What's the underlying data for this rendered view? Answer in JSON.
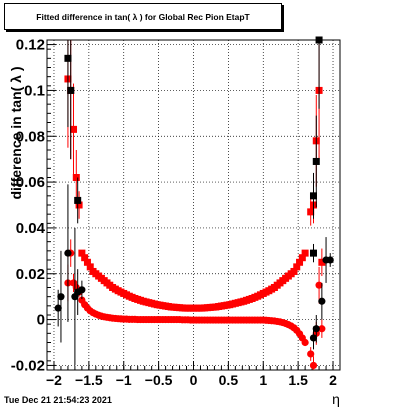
{
  "title": "Fitted difference in tan( λ ) for Global Rec Pion EtapT",
  "timestamp": "Tue Dec 21 21:54:23 2021",
  "chart_data": {
    "type": "scatter",
    "xlabel": "η",
    "ylabel": "difference in tan( λ )",
    "xlim": [
      -2.1,
      2.1
    ],
    "ylim": [
      -0.022,
      0.122
    ],
    "xticks": [
      -2,
      -1.5,
      -1,
      -0.5,
      0,
      0.5,
      1,
      1.5,
      2
    ],
    "xtick_labels": [
      "−2",
      "−1.5",
      "−1",
      "−0.5",
      "0",
      "0.5",
      "1",
      "1.5",
      "2"
    ],
    "yticks": [
      -0.02,
      0,
      0.02,
      0.04,
      0.06,
      0.08,
      0.1,
      0.12
    ],
    "ytick_labels": [
      "-0.02",
      "0",
      "0.02",
      "0.04",
      "0.06",
      "0.08",
      "0.1",
      "0.12"
    ],
    "grid": true,
    "series": [
      {
        "color": "#ff0000",
        "marker": "square",
        "points": [
          [
            -1.8,
            0.105
          ],
          [
            -1.76,
            0.1
          ],
          [
            -1.72,
            0.083
          ],
          [
            -1.68,
            0.062
          ],
          [
            -1.64,
            0.05
          ],
          [
            -1.6,
            0.029
          ],
          [
            -1.56,
            0.027
          ],
          [
            -1.52,
            0.025
          ],
          [
            -1.48,
            0.023
          ],
          [
            -1.44,
            0.021
          ],
          [
            -1.4,
            0.02
          ],
          [
            -1.36,
            0.019
          ],
          [
            -1.32,
            0.018
          ],
          [
            -1.28,
            0.017
          ],
          [
            -1.24,
            0.016
          ],
          [
            -1.2,
            0.015
          ],
          [
            -1.16,
            0.014
          ],
          [
            -1.12,
            0.0133
          ],
          [
            -1.08,
            0.0126
          ],
          [
            -1.04,
            0.012
          ],
          [
            -1.0,
            0.0114
          ],
          [
            -0.96,
            0.0108
          ],
          [
            -0.92,
            0.0102
          ],
          [
            -0.88,
            0.0097
          ],
          [
            -0.84,
            0.0092
          ],
          [
            -0.8,
            0.0088
          ],
          [
            -0.76,
            0.0084
          ],
          [
            -0.72,
            0.008
          ],
          [
            -0.68,
            0.0077
          ],
          [
            -0.64,
            0.0074
          ],
          [
            -0.6,
            0.0071
          ],
          [
            -0.56,
            0.0068
          ],
          [
            -0.52,
            0.0065
          ],
          [
            -0.48,
            0.0063
          ],
          [
            -0.44,
            0.0061
          ],
          [
            -0.4,
            0.0059
          ],
          [
            -0.36,
            0.0057
          ],
          [
            -0.32,
            0.0055
          ],
          [
            -0.28,
            0.0054
          ],
          [
            -0.24,
            0.0053
          ],
          [
            -0.2,
            0.0052
          ],
          [
            -0.16,
            0.0051
          ],
          [
            -0.12,
            0.005
          ],
          [
            -0.08,
            0.005
          ],
          [
            -0.04,
            0.005
          ],
          [
            0.0,
            0.005
          ],
          [
            0.04,
            0.005
          ],
          [
            0.08,
            0.005
          ],
          [
            0.12,
            0.005
          ],
          [
            0.16,
            0.0051
          ],
          [
            0.2,
            0.0052
          ],
          [
            0.24,
            0.0053
          ],
          [
            0.28,
            0.0054
          ],
          [
            0.32,
            0.0055
          ],
          [
            0.36,
            0.0057
          ],
          [
            0.4,
            0.0059
          ],
          [
            0.44,
            0.0061
          ],
          [
            0.48,
            0.0063
          ],
          [
            0.52,
            0.0065
          ],
          [
            0.56,
            0.0068
          ],
          [
            0.6,
            0.0071
          ],
          [
            0.64,
            0.0074
          ],
          [
            0.68,
            0.0077
          ],
          [
            0.72,
            0.008
          ],
          [
            0.76,
            0.0084
          ],
          [
            0.8,
            0.0088
          ],
          [
            0.84,
            0.0092
          ],
          [
            0.88,
            0.0097
          ],
          [
            0.92,
            0.0102
          ],
          [
            0.96,
            0.0108
          ],
          [
            1.0,
            0.0114
          ],
          [
            1.04,
            0.012
          ],
          [
            1.08,
            0.0126
          ],
          [
            1.12,
            0.0133
          ],
          [
            1.16,
            0.014
          ],
          [
            1.2,
            0.015
          ],
          [
            1.24,
            0.016
          ],
          [
            1.28,
            0.017
          ],
          [
            1.32,
            0.018
          ],
          [
            1.36,
            0.019
          ],
          [
            1.4,
            0.02
          ],
          [
            1.44,
            0.021
          ],
          [
            1.48,
            0.023
          ],
          [
            1.52,
            0.025
          ],
          [
            1.56,
            0.027
          ],
          [
            1.6,
            0.029
          ],
          [
            1.68,
            0.047
          ],
          [
            1.72,
            0.05
          ],
          [
            1.76,
            0.078
          ],
          [
            1.8,
            0.1
          ],
          [
            1.84,
            0.025
          ]
        ],
        "errors": [
          0.03,
          0.03,
          0.02,
          0.012,
          0.006,
          0,
          0,
          0,
          0,
          0,
          0,
          0,
          0,
          0,
          0,
          0,
          0,
          0,
          0,
          0,
          0,
          0,
          0,
          0,
          0,
          0,
          0,
          0,
          0,
          0,
          0,
          0,
          0,
          0,
          0,
          0,
          0,
          0,
          0,
          0,
          0,
          0,
          0,
          0,
          0,
          0,
          0,
          0,
          0,
          0,
          0,
          0,
          0,
          0,
          0,
          0,
          0,
          0,
          0,
          0,
          0,
          0,
          0,
          0,
          0,
          0,
          0,
          0,
          0,
          0,
          0,
          0,
          0,
          0,
          0,
          0,
          0,
          0,
          0,
          0,
          0,
          0,
          0,
          0,
          0,
          0,
          0.006,
          0.008,
          0.02,
          0.03,
          0.006
        ]
      },
      {
        "color": "#ff0000",
        "marker": "circle",
        "points": [
          [
            -1.8,
            0.016
          ],
          [
            -1.76,
            0.029
          ],
          [
            -1.72,
            0.016
          ],
          [
            -1.68,
            0.014
          ],
          [
            -1.64,
            0.012
          ],
          [
            -1.6,
            0.0085
          ],
          [
            -1.56,
            0.0065
          ],
          [
            -1.52,
            0.005
          ],
          [
            -1.48,
            0.0038
          ],
          [
            -1.44,
            0.003
          ],
          [
            -1.4,
            0.0024
          ],
          [
            -1.36,
            0.0019
          ],
          [
            -1.32,
            0.0015
          ],
          [
            -1.28,
            0.0012
          ],
          [
            -1.24,
            0.001
          ],
          [
            -1.2,
            0.0008
          ],
          [
            -1.16,
            0.0006
          ],
          [
            -1.12,
            0.0005
          ],
          [
            -1.08,
            0.0004
          ],
          [
            -1.04,
            0.0003
          ],
          [
            -1.0,
            0.0002
          ],
          [
            -0.96,
            0.0002
          ],
          [
            -0.92,
            0.0001
          ],
          [
            -0.88,
            0.0001
          ],
          [
            -0.84,
            0.0001
          ],
          [
            -0.8,
            0.0
          ],
          [
            -0.76,
            0.0
          ],
          [
            -0.72,
            0.0
          ],
          [
            -0.68,
            0.0
          ],
          [
            -0.64,
            0.0
          ],
          [
            -0.6,
            0.0
          ],
          [
            -0.56,
            0.0
          ],
          [
            -0.52,
            0.0
          ],
          [
            -0.48,
            0.0
          ],
          [
            -0.44,
            0.0
          ],
          [
            -0.4,
            0.0
          ],
          [
            -0.36,
            0.0
          ],
          [
            -0.32,
            0.0
          ],
          [
            -0.28,
            0.0
          ],
          [
            -0.24,
            0.0
          ],
          [
            -0.2,
            0.0
          ],
          [
            -0.16,
            -0.0001
          ],
          [
            -0.12,
            -0.0001
          ],
          [
            -0.08,
            -0.0001
          ],
          [
            -0.04,
            -0.0002
          ],
          [
            0.0,
            -0.0002
          ],
          [
            0.04,
            -0.0002
          ],
          [
            0.08,
            -0.0002
          ],
          [
            0.12,
            -0.0002
          ],
          [
            0.16,
            -0.0002
          ],
          [
            0.2,
            -0.0002
          ],
          [
            0.24,
            -0.0002
          ],
          [
            0.28,
            -0.0002
          ],
          [
            0.32,
            -0.0002
          ],
          [
            0.36,
            -0.0002
          ],
          [
            0.4,
            -0.0002
          ],
          [
            0.44,
            -0.0002
          ],
          [
            0.48,
            -0.0002
          ],
          [
            0.52,
            -0.0002
          ],
          [
            0.56,
            -0.0002
          ],
          [
            0.6,
            -0.0002
          ],
          [
            0.64,
            -0.0002
          ],
          [
            0.68,
            -0.0002
          ],
          [
            0.72,
            -0.0002
          ],
          [
            0.76,
            -0.0002
          ],
          [
            0.8,
            -0.0002
          ],
          [
            0.84,
            -0.0002
          ],
          [
            0.88,
            -0.0002
          ],
          [
            0.92,
            -0.0002
          ],
          [
            0.96,
            -0.0002
          ],
          [
            1.0,
            -0.0002
          ],
          [
            1.04,
            -0.0003
          ],
          [
            1.08,
            -0.0004
          ],
          [
            1.12,
            -0.0005
          ],
          [
            1.16,
            -0.0006
          ],
          [
            1.2,
            -0.0008
          ],
          [
            1.24,
            -0.001
          ],
          [
            1.28,
            -0.0013
          ],
          [
            1.32,
            -0.0017
          ],
          [
            1.36,
            -0.0022
          ],
          [
            1.4,
            -0.0028
          ],
          [
            1.44,
            -0.0036
          ],
          [
            1.48,
            -0.0047
          ],
          [
            1.52,
            -0.0062
          ],
          [
            1.56,
            -0.008
          ],
          [
            1.6,
            -0.01
          ],
          [
            1.68,
            -0.015
          ],
          [
            1.72,
            -0.02
          ],
          [
            1.76,
            -0.006
          ],
          [
            1.8,
            0.015
          ],
          [
            1.84,
            -0.004
          ]
        ],
        "errors": [
          0.008,
          0.006,
          0.004,
          0.003,
          0.002,
          0,
          0,
          0,
          0,
          0,
          0,
          0,
          0,
          0,
          0,
          0,
          0,
          0,
          0,
          0,
          0,
          0,
          0,
          0,
          0,
          0,
          0,
          0,
          0,
          0,
          0,
          0,
          0,
          0,
          0,
          0,
          0,
          0,
          0,
          0,
          0,
          0,
          0,
          0,
          0,
          0,
          0,
          0,
          0,
          0,
          0,
          0,
          0,
          0,
          0,
          0,
          0,
          0,
          0,
          0,
          0,
          0,
          0,
          0,
          0,
          0,
          0,
          0,
          0,
          0,
          0,
          0,
          0,
          0,
          0,
          0,
          0,
          0,
          0,
          0,
          0,
          0,
          0,
          0,
          0,
          0,
          0.003,
          0.004,
          0.005,
          0.008,
          0.004
        ]
      },
      {
        "color": "#000000",
        "marker": "square",
        "points": [
          [
            -1.8,
            0.114
          ],
          [
            -1.76,
            0.1
          ],
          [
            -1.66,
            0.052
          ],
          [
            1.72,
            0.054
          ],
          [
            1.76,
            0.069
          ],
          [
            1.8,
            0.122
          ],
          [
            1.72,
            0.029
          ]
        ],
        "errors": [
          0.03,
          0.03,
          0.01,
          0.01,
          0.02,
          0.03,
          0.004
        ]
      },
      {
        "color": "#000000",
        "marker": "circle",
        "points": [
          [
            -1.94,
            0.005
          ],
          [
            -1.9,
            0.01
          ],
          [
            -1.8,
            0.029
          ],
          [
            -1.7,
            0.01
          ],
          [
            -1.66,
            0.012
          ],
          [
            -1.6,
            0.013
          ],
          [
            1.72,
            -0.008
          ],
          [
            1.76,
            -0.004
          ],
          [
            1.84,
            0.008
          ],
          [
            1.9,
            0.026
          ],
          [
            1.96,
            0.026
          ]
        ],
        "errors": [
          0.008,
          0.02,
          0.03,
          0.03,
          0.01,
          0.004,
          0.005,
          0.006,
          0.008,
          0.01,
          0.003
        ]
      }
    ]
  }
}
